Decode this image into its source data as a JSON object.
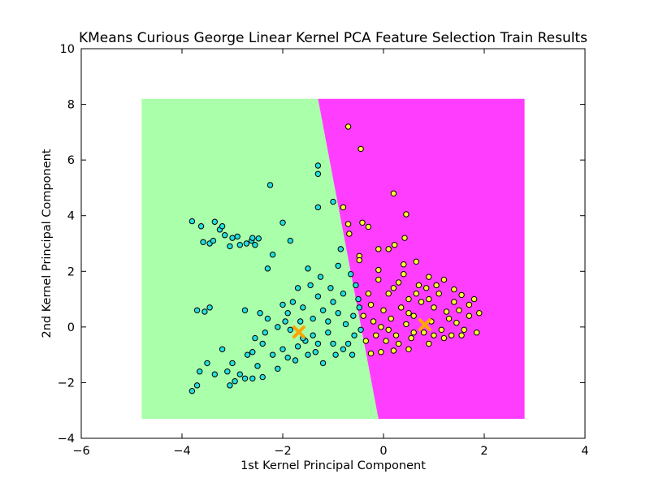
{
  "chart_data": {
    "type": "scatter",
    "title": "KMeans Curious George Linear Kernel PCA Feature Selection Train Results",
    "xlabel": "1st Kernel Principal Component",
    "ylabel": "2nd Kernel Principal Component",
    "xlim": [
      -6,
      4
    ],
    "ylim": [
      -4,
      10
    ],
    "xticks": [
      -6,
      -4,
      -2,
      0,
      2,
      4
    ],
    "yticks": [
      -4,
      -2,
      0,
      2,
      4,
      6,
      8,
      10
    ],
    "grid": false,
    "legend": "none",
    "colors": {
      "region_cluster_0": "#aaffaa",
      "region_cluster_1": "#ff3dff",
      "points_cluster_0": "#22e0e0",
      "points_cluster_1": "#ffff33",
      "point_edge": "#000000",
      "centroid": "#ffa500"
    },
    "decision_region": {
      "x_range": [
        -4.8,
        2.8
      ],
      "y_range": [
        -3.3,
        8.2
      ],
      "boundary": [
        [
          -1.3,
          8.2
        ],
        [
          -0.1,
          -3.3
        ]
      ]
    },
    "centroids": [
      {
        "x": -1.68,
        "y": -0.18
      },
      {
        "x": 0.82,
        "y": 0.08
      }
    ],
    "series": [
      {
        "values": [
          [
            -3.8,
            3.8
          ],
          [
            -3.62,
            3.62
          ],
          [
            -3.58,
            3.05
          ],
          [
            -3.45,
            3.0
          ],
          [
            -3.35,
            3.78
          ],
          [
            -3.38,
            3.1
          ],
          [
            -3.25,
            3.5
          ],
          [
            -3.2,
            3.62
          ],
          [
            -3.15,
            3.3
          ],
          [
            -3.05,
            2.9
          ],
          [
            -3.0,
            3.2
          ],
          [
            -2.9,
            3.25
          ],
          [
            -2.85,
            2.95
          ],
          [
            -2.72,
            3.0
          ],
          [
            -2.62,
            3.1
          ],
          [
            -2.55,
            2.95
          ],
          [
            -2.48,
            3.18
          ],
          [
            -2.6,
            3.2
          ],
          [
            -2.3,
            2.1
          ],
          [
            -2.2,
            2.6
          ],
          [
            -2.25,
            5.1
          ],
          [
            -2.0,
            3.75
          ],
          [
            -1.85,
            3.1
          ],
          [
            -1.3,
            5.8
          ],
          [
            -1.3,
            5.5
          ],
          [
            -1.3,
            4.3
          ],
          [
            -1.0,
            4.5
          ],
          [
            -3.7,
            0.6
          ],
          [
            -3.55,
            0.55
          ],
          [
            -3.45,
            0.7
          ],
          [
            -3.2,
            -0.8
          ],
          [
            -3.5,
            -1.3
          ],
          [
            -3.65,
            -1.6
          ],
          [
            -3.7,
            -2.1
          ],
          [
            -3.8,
            -2.3
          ],
          [
            -3.35,
            -1.7
          ],
          [
            -3.1,
            -1.6
          ],
          [
            -3.0,
            -1.3
          ],
          [
            -3.05,
            -2.1
          ],
          [
            -2.95,
            -1.95
          ],
          [
            -2.85,
            -1.7
          ],
          [
            -2.75,
            -1.85
          ],
          [
            -2.6,
            -1.85
          ],
          [
            -2.75,
            0.6
          ],
          [
            -2.55,
            -0.4
          ],
          [
            -2.7,
            -1.0
          ],
          [
            -2.5,
            -1.4
          ],
          [
            -2.6,
            -0.9
          ],
          [
            -2.4,
            -1.8
          ],
          [
            -2.35,
            -0.2
          ],
          [
            -2.3,
            0.3
          ],
          [
            -2.2,
            -1.0
          ],
          [
            -2.1,
            -1.5
          ],
          [
            -2.0,
            -0.8
          ],
          [
            -1.95,
            0.2
          ],
          [
            -1.9,
            0.5
          ],
          [
            -1.8,
            0.9
          ],
          [
            -1.75,
            -1.2
          ],
          [
            -1.7,
            1.4
          ],
          [
            -1.6,
            0.7
          ],
          [
            -1.5,
            2.1
          ],
          [
            -1.55,
            -0.5
          ],
          [
            -1.45,
            1.5
          ],
          [
            -1.4,
            0.3
          ],
          [
            -1.35,
            -0.9
          ],
          [
            -1.3,
            1.1
          ],
          [
            -1.25,
            1.8
          ],
          [
            -1.2,
            0.6
          ],
          [
            -1.1,
            -0.2
          ],
          [
            -1.05,
            1.4
          ],
          [
            -1.0,
            0.9
          ],
          [
            -0.95,
            -1.0
          ],
          [
            -0.9,
            2.2
          ],
          [
            -0.85,
            2.8
          ],
          [
            -0.8,
            1.2
          ],
          [
            -0.75,
            0.1
          ],
          [
            -0.7,
            -0.6
          ],
          [
            -0.65,
            1.9
          ],
          [
            -0.6,
            0.4
          ],
          [
            -0.58,
            -0.3
          ],
          [
            -0.55,
            1.5
          ],
          [
            -0.5,
            1.0
          ],
          [
            -0.48,
            0.7
          ],
          [
            -0.45,
            -0.1
          ],
          [
            -0.62,
            -1.0
          ],
          [
            -1.6,
            -0.4
          ],
          [
            -1.5,
            -1.0
          ],
          [
            -1.7,
            -0.7
          ],
          [
            -2.0,
            0.8
          ],
          [
            -1.85,
            -0.1
          ],
          [
            -2.45,
            0.5
          ],
          [
            -2.4,
            -0.6
          ],
          [
            -1.2,
            -1.3
          ],
          [
            -1.0,
            -0.6
          ],
          [
            -0.9,
            0.5
          ],
          [
            -1.4,
            -0.3
          ],
          [
            -1.65,
            0.2
          ],
          [
            -1.1,
            0.2
          ],
          [
            -1.3,
            -0.6
          ],
          [
            -0.8,
            -0.8
          ],
          [
            -1.9,
            -1.1
          ],
          [
            -2.1,
            0.0
          ]
        ]
      },
      {
        "values": [
          [
            -0.7,
            7.2
          ],
          [
            -0.45,
            6.4
          ],
          [
            0.2,
            4.8
          ],
          [
            0.45,
            4.05
          ],
          [
            -0.8,
            4.3
          ],
          [
            -0.7,
            3.7
          ],
          [
            -0.42,
            3.75
          ],
          [
            -0.3,
            3.6
          ],
          [
            -0.68,
            3.35
          ],
          [
            0.22,
            2.95
          ],
          [
            0.42,
            3.2
          ],
          [
            -0.48,
            2.55
          ],
          [
            -0.48,
            2.4
          ],
          [
            -0.1,
            2.8
          ],
          [
            0.1,
            2.8
          ],
          [
            0.65,
            2.35
          ],
          [
            -0.1,
            2.05
          ],
          [
            0.4,
            2.25
          ],
          [
            0.9,
            1.8
          ],
          [
            1.2,
            1.7
          ],
          [
            1.4,
            1.35
          ],
          [
            1.55,
            1.15
          ],
          [
            1.8,
            1.0
          ],
          [
            1.9,
            0.5
          ],
          [
            1.85,
            -0.2
          ],
          [
            1.55,
            -0.3
          ],
          [
            1.2,
            -0.4
          ],
          [
            0.9,
            -0.6
          ],
          [
            0.5,
            -0.8
          ],
          [
            0.2,
            -0.85
          ],
          [
            -0.05,
            -0.9
          ],
          [
            -0.25,
            -0.95
          ],
          [
            -0.35,
            -0.5
          ],
          [
            -0.2,
            0.2
          ],
          [
            0.0,
            0.6
          ],
          [
            0.1,
            1.2
          ],
          [
            0.3,
            1.6
          ],
          [
            0.5,
            1.0
          ],
          [
            0.6,
            0.4
          ],
          [
            0.7,
            1.5
          ],
          [
            0.8,
            -0.2
          ],
          [
            1.0,
            0.7
          ],
          [
            1.1,
            1.2
          ],
          [
            1.3,
            0.3
          ],
          [
            1.5,
            0.6
          ],
          [
            1.6,
            -0.1
          ],
          [
            1.4,
            0.9
          ],
          [
            1.7,
            0.4
          ],
          [
            0.25,
            -0.3
          ],
          [
            0.45,
            0.1
          ],
          [
            0.05,
            -0.5
          ],
          [
            -0.1,
            1.7
          ],
          [
            -0.3,
            1.2
          ],
          [
            -0.25,
            0.8
          ],
          [
            0.15,
            0.3
          ],
          [
            0.35,
            0.7
          ],
          [
            0.95,
            0.2
          ],
          [
            1.15,
            -0.1
          ],
          [
            0.75,
            0.9
          ],
          [
            0.55,
            -0.4
          ],
          [
            1.25,
            0.55
          ],
          [
            1.45,
            0.15
          ],
          [
            0.65,
            1.2
          ],
          [
            0.85,
            1.4
          ],
          [
            1.05,
            1.5
          ],
          [
            -0.05,
            0.0
          ],
          [
            0.3,
            -0.6
          ],
          [
            0.6,
            -0.2
          ],
          [
            -0.15,
            -0.3
          ],
          [
            1.35,
            -0.3
          ],
          [
            0.4,
            1.9
          ],
          [
            0.2,
            1.4
          ],
          [
            -0.4,
            0.4
          ],
          [
            0.1,
            -0.1
          ],
          [
            1.7,
            0.8
          ],
          [
            1.0,
            -0.3
          ],
          [
            0.9,
            1.0
          ],
          [
            0.5,
            0.5
          ]
        ]
      }
    ]
  }
}
